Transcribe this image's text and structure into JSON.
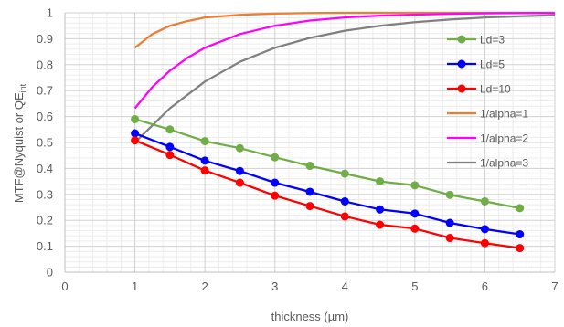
{
  "chart_data": {
    "type": "line",
    "title": "",
    "xlabel": "thickness (µm)",
    "ylabel": {
      "main": "MTF@Nyquist or  QE",
      "sub": "int"
    },
    "xlim": [
      0,
      7
    ],
    "ylim": [
      0,
      1
    ],
    "x_ticks": [
      "0",
      "1",
      "2",
      "3",
      "4",
      "5",
      "6",
      "7"
    ],
    "y_ticks": [
      "0",
      "0.1",
      "0.2",
      "0.3",
      "0.4",
      "0.5",
      "0.6",
      "0.7",
      "0.8",
      "0.9",
      "1"
    ],
    "grid": true,
    "minor_grid": true,
    "legend_position": "right",
    "series": [
      {
        "name": "Ld=3",
        "color": "#70ad47",
        "markers": true,
        "x": [
          1,
          1.5,
          2,
          2.5,
          3,
          3.5,
          4,
          4.5,
          5,
          5.5,
          6,
          6.5
        ],
        "y": [
          0.59,
          0.55,
          0.505,
          0.478,
          0.443,
          0.41,
          0.38,
          0.35,
          0.335,
          0.298,
          0.273,
          0.247
        ]
      },
      {
        "name": "Ld=5",
        "color": "#0000ff",
        "markers": true,
        "x": [
          1,
          1.5,
          2,
          2.5,
          3,
          3.5,
          4,
          4.5,
          5,
          5.5,
          6,
          6.5
        ],
        "y": [
          0.535,
          0.483,
          0.43,
          0.39,
          0.345,
          0.31,
          0.273,
          0.242,
          0.226,
          0.19,
          0.166,
          0.146
        ]
      },
      {
        "name": "Ld=10",
        "color": "#ff0000",
        "markers": true,
        "x": [
          1,
          1.5,
          2,
          2.5,
          3,
          3.5,
          4,
          4.5,
          5,
          5.5,
          6,
          6.5
        ],
        "y": [
          0.508,
          0.452,
          0.392,
          0.345,
          0.295,
          0.255,
          0.215,
          0.183,
          0.168,
          0.132,
          0.112,
          0.093
        ]
      },
      {
        "name": "1/alpha=1",
        "color": "#ed7d31",
        "markers": false,
        "x": [
          1,
          1.25,
          1.5,
          1.75,
          2,
          2.5,
          3,
          3.5,
          4,
          5,
          6,
          7
        ],
        "y": [
          0.865,
          0.918,
          0.95,
          0.968,
          0.982,
          0.992,
          0.997,
          0.999,
          1.0,
          1.0,
          1.0,
          1.0
        ]
      },
      {
        "name": "1/alpha=2",
        "color": "#ff00ff",
        "markers": false,
        "x": [
          1,
          1.25,
          1.5,
          1.75,
          2,
          2.5,
          3,
          3.5,
          4,
          4.5,
          5,
          5.5,
          6,
          6.5,
          7
        ],
        "y": [
          0.632,
          0.714,
          0.777,
          0.826,
          0.865,
          0.918,
          0.95,
          0.97,
          0.982,
          0.989,
          0.993,
          0.996,
          0.998,
          0.999,
          0.999
        ]
      },
      {
        "name": "1/alpha=3",
        "color": "#808080",
        "markers": false,
        "x": [
          1,
          1.5,
          2,
          2.5,
          3,
          3.5,
          4,
          4.5,
          5,
          5.5,
          6,
          6.5,
          7
        ],
        "y": [
          0.5,
          0.632,
          0.735,
          0.811,
          0.865,
          0.903,
          0.931,
          0.95,
          0.964,
          0.974,
          0.982,
          0.987,
          0.991
        ]
      }
    ]
  }
}
